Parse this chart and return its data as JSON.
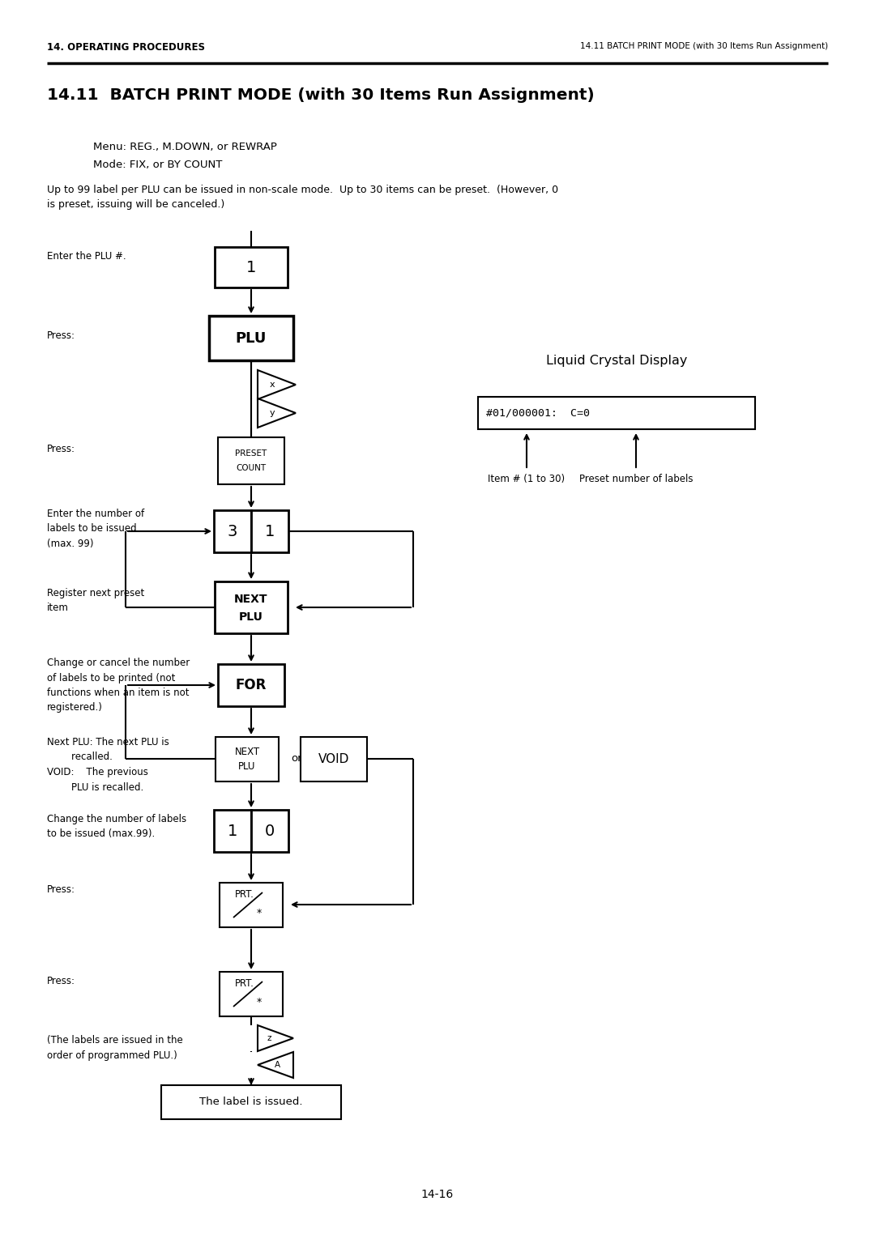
{
  "page_header_left": "14. OPERATING PROCEDURES",
  "page_header_right": "14.11 BATCH PRINT MODE (with 30 Items Run Assignment)",
  "title": "14.11  BATCH PRINT MODE (with 30 Items Run Assignment)",
  "menu_line": "Menu: REG., M.DOWN, or REWRAP",
  "mode_line": "Mode: FIX, or BY COUNT",
  "body_text": "Up to 99 label per PLU can be issued in non-scale mode.  Up to 30 items can be preset.  (However, 0\nis preset, issuing will be canceled.)",
  "page_number": "14-16",
  "lcd_title": "Liquid Crystal Display",
  "lcd_content": "#01/000001:  C=0",
  "lcd_arrow1_label": "Item # (1 to 30)",
  "lcd_arrow2_label": "Preset number of labels",
  "background_color": "#ffffff"
}
